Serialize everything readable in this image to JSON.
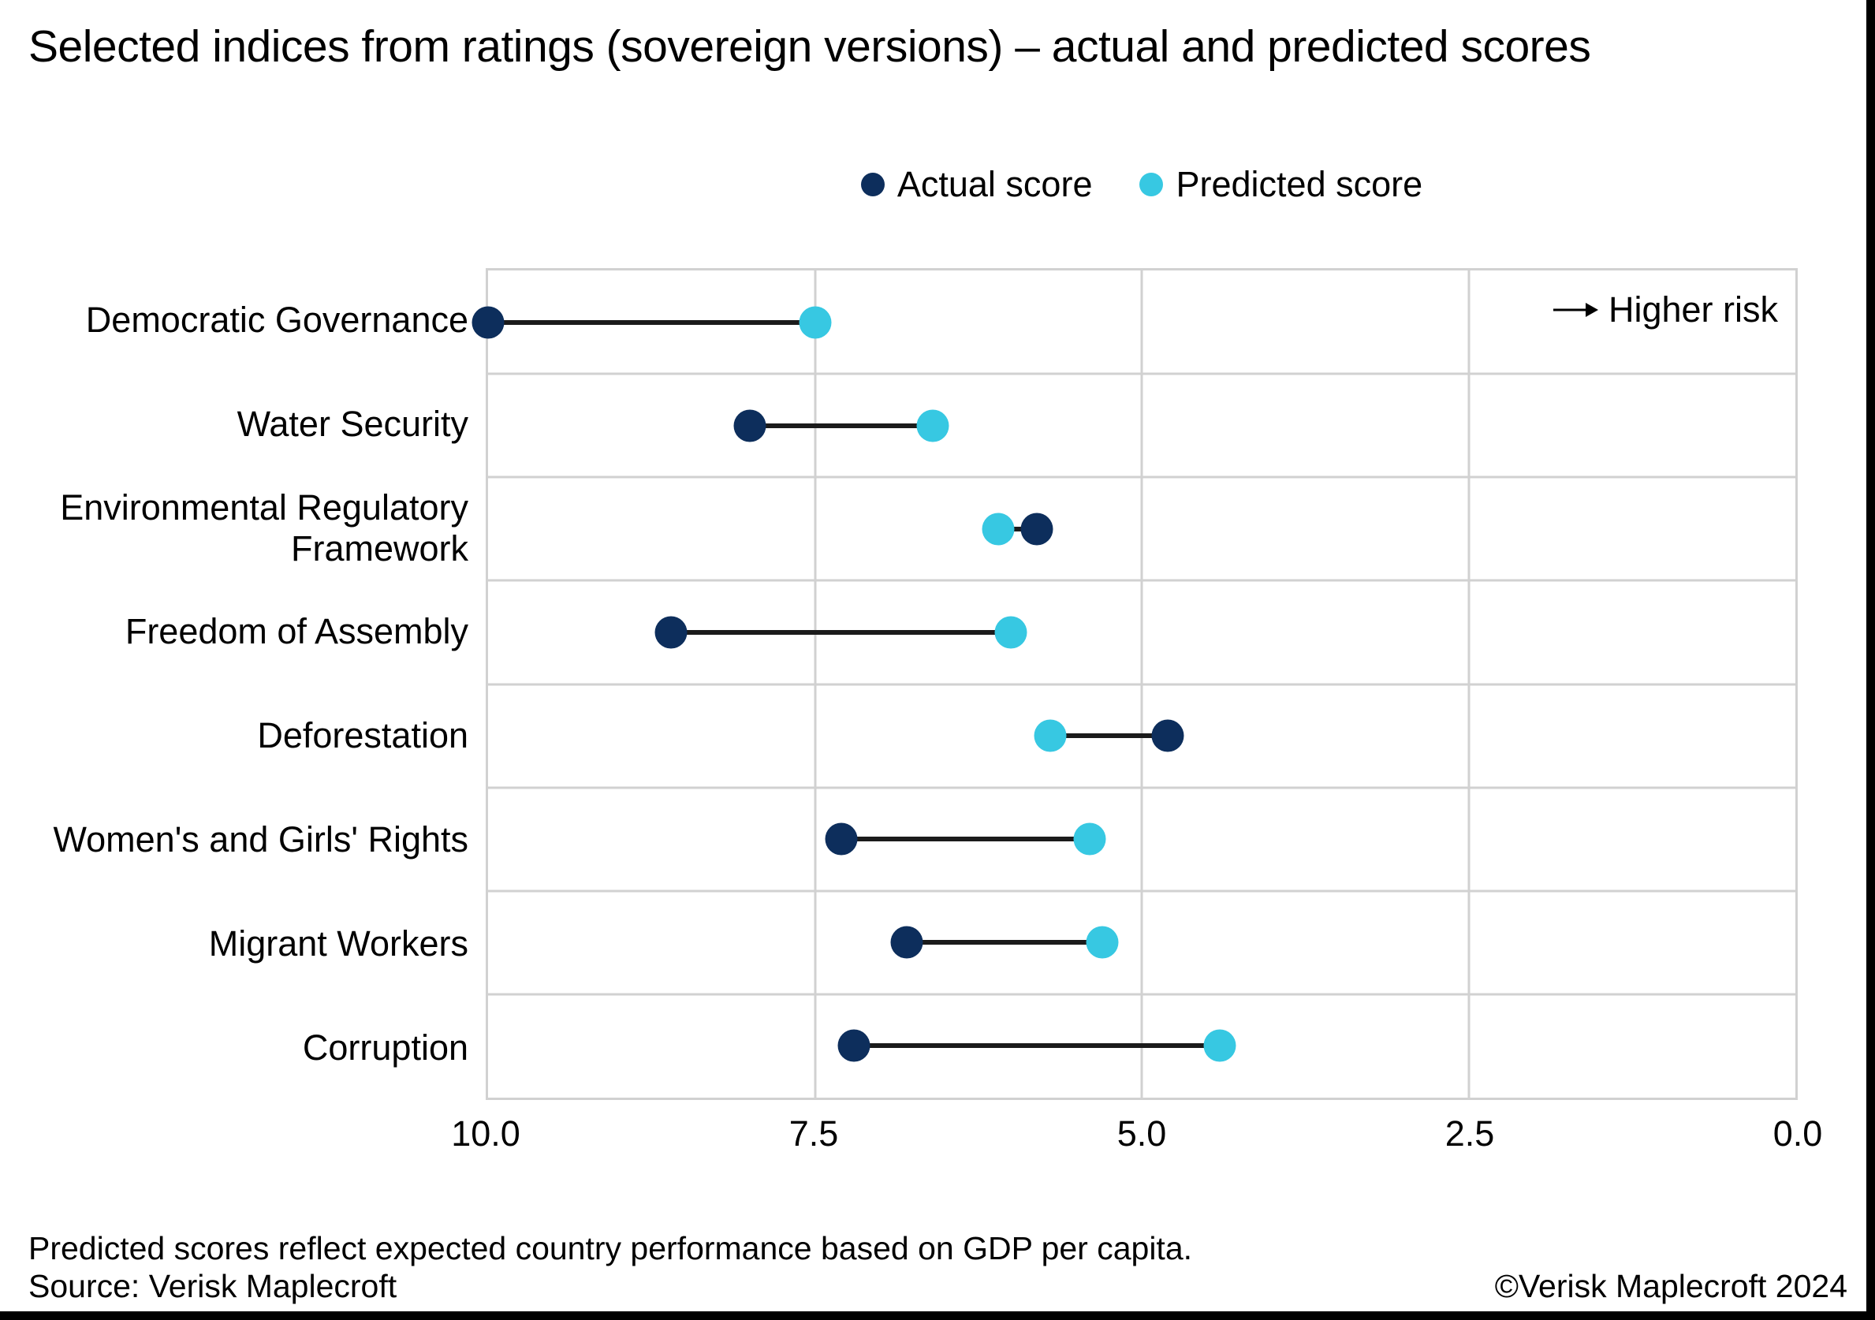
{
  "chart_data": {
    "type": "dumbbell",
    "title": "Selected indices from ratings (sovereign versions) – actual and predicted scores",
    "categories": [
      "Democratic Governance",
      "Water Security",
      "Environmental Regulatory Framework",
      "Freedom of Assembly",
      "Deforestation",
      "Women's and Girls' Rights",
      "Migrant Workers",
      "Corruption"
    ],
    "series": [
      {
        "name": "Actual score",
        "color": "#0d2e5c",
        "values": [
          10.0,
          8.0,
          5.8,
          8.6,
          4.8,
          7.3,
          6.8,
          7.2
        ]
      },
      {
        "name": "Predicted score",
        "color": "#37c8e2",
        "values": [
          7.5,
          6.6,
          6.1,
          6.0,
          5.7,
          5.4,
          5.3,
          4.4
        ]
      }
    ],
    "x_axis": {
      "min": 0.0,
      "max": 10.0,
      "reversed": true,
      "ticks": [
        {
          "label": "10.0",
          "value": 10.0
        },
        {
          "label": "7.5",
          "value": 7.5
        },
        {
          "label": "5.0",
          "value": 5.0
        },
        {
          "label": "2.5",
          "value": 2.5
        },
        {
          "label": "0.0",
          "value": 0.0
        }
      ]
    },
    "grid": true,
    "legend_position": "top-center",
    "annotation": "Higher risk",
    "colors": {
      "grid": "#d1d1d1",
      "connector": "#1b1b1b",
      "text": "#000000"
    }
  },
  "footer": {
    "note": "Predicted scores reflect expected country performance based on GDP per capita.",
    "source": "Source: Verisk Maplecroft",
    "copyright": "©Verisk Maplecroft 2024"
  }
}
